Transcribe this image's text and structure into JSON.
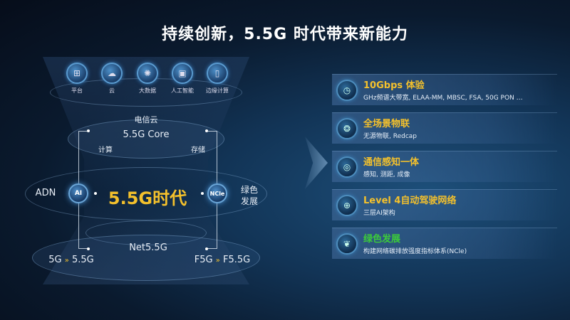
{
  "title": "持续创新，5.5G 时代带来新能力",
  "colors": {
    "accent_yellow": "#f4c12c",
    "accent_green": "#3ccb3a",
    "background": "#0a1a2e"
  },
  "cloud_icons": [
    {
      "label": "平台",
      "icon": "platform-icon"
    },
    {
      "label": "云",
      "icon": "cloud-icon"
    },
    {
      "label": "大数据",
      "icon": "big-data-icon"
    },
    {
      "label": "人工智能",
      "icon": "ai-chip-icon"
    },
    {
      "label": "边缘计算",
      "icon": "edge-computing-icon"
    }
  ],
  "diagram": {
    "telecom_cloud": "电信云",
    "core": "5.5G Core",
    "compute": "计算",
    "storage": "存储",
    "center": "5.5G时代",
    "adn": "ADN",
    "ai_node": "AI",
    "ncle_node": "NCle",
    "green_1": "绿色",
    "green_2": "发展",
    "net": "Net5.5G",
    "left_from": "5G",
    "left_to": "5.5G",
    "right_from": "F5G",
    "right_to": "F5.5G"
  },
  "cards": [
    {
      "title": "10Gbps 体验",
      "sub": "GHz频谱大带宽, ELAA-MM, MBSC, FSA, 50G PON …",
      "icon": "speed-gauge-icon",
      "color": "#f4c12c"
    },
    {
      "title": "全场景物联",
      "sub": "无源物联, Redcap",
      "icon": "iot-network-icon",
      "color": "#f4c12c"
    },
    {
      "title": "通信感知一体",
      "sub": "感知, 测距, 成像",
      "icon": "sensing-icon",
      "color": "#f4c12c"
    },
    {
      "title": "Level 4自动驾驶网络",
      "sub": "三层AI架构",
      "icon": "autonomous-network-icon",
      "color": "#f4c12c"
    },
    {
      "title": "绿色发展",
      "sub": "构建网络碳排放强度指标体系(NCle)",
      "icon": "leaf-icon",
      "color": "#3ccb3a"
    }
  ]
}
